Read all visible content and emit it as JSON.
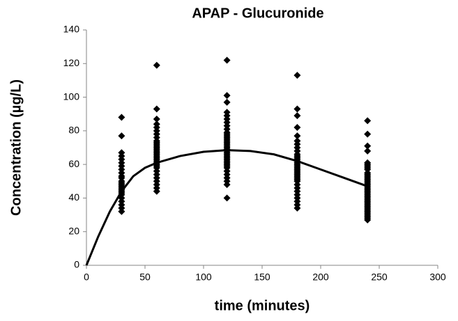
{
  "chart_data": {
    "type": "scatter",
    "title": "APAP - Glucuronide",
    "x_label": "time (minutes)",
    "y_label": "Concentration (µg/L)",
    "xlim": [
      0,
      300
    ],
    "xticks": [
      0,
      50,
      100,
      150,
      200,
      250,
      300
    ],
    "ylim": [
      0,
      140
    ],
    "yticks": [
      0,
      20,
      40,
      60,
      80,
      100,
      120,
      140
    ],
    "grid": false,
    "series": [
      {
        "color": "#000000",
        "marker": "diamond",
        "x": [
          30,
          30,
          30,
          30,
          30,
          30,
          30,
          30,
          30,
          30,
          30,
          30,
          30,
          30,
          30,
          30,
          30,
          30,
          30,
          30,
          30,
          30,
          30,
          30,
          30,
          60,
          60,
          60,
          60,
          60,
          60,
          60,
          60,
          60,
          60,
          60,
          60,
          60,
          60,
          60,
          60,
          60,
          60,
          60,
          60,
          60,
          60,
          60,
          60,
          60,
          60,
          60,
          60,
          60,
          60,
          60,
          60,
          120,
          120,
          120,
          120,
          120,
          120,
          120,
          120,
          120,
          120,
          120,
          120,
          120,
          120,
          120,
          120,
          120,
          120,
          120,
          120,
          120,
          120,
          120,
          120,
          120,
          120,
          120,
          120,
          120,
          120,
          120,
          120,
          120,
          120,
          120,
          120,
          120,
          180,
          180,
          180,
          180,
          180,
          180,
          180,
          180,
          180,
          180,
          180,
          180,
          180,
          180,
          180,
          180,
          180,
          180,
          180,
          180,
          180,
          180,
          180,
          180,
          180,
          180,
          180,
          180,
          180,
          180,
          180,
          180,
          180,
          180,
          240,
          240,
          240,
          240,
          240,
          240,
          240,
          240,
          240,
          240,
          240,
          240,
          240,
          240,
          240,
          240,
          240,
          240,
          240,
          240,
          240,
          240,
          240,
          240,
          240,
          240,
          240,
          240,
          240,
          240,
          240,
          240,
          240,
          240,
          240,
          240,
          240,
          240
        ],
        "values": [
          88,
          77,
          67,
          65,
          63,
          61,
          59,
          57,
          55,
          53,
          52,
          50,
          49,
          48,
          47,
          46,
          45,
          44,
          43,
          42,
          40,
          38,
          36,
          34,
          32,
          119,
          93,
          87,
          84,
          82,
          80,
          78,
          76,
          74,
          73,
          72,
          71,
          70,
          69,
          68,
          67,
          66,
          65,
          64,
          63,
          62,
          61,
          60,
          59,
          58,
          56,
          54,
          52,
          50,
          48,
          46,
          44,
          122,
          101,
          97,
          91,
          89,
          87,
          85,
          83,
          81,
          79,
          78,
          77,
          76,
          75,
          74,
          73,
          72,
          71,
          70,
          69,
          68,
          67,
          66,
          65,
          64,
          63,
          62,
          61,
          60,
          59,
          58,
          56,
          54,
          52,
          50,
          48,
          40,
          113,
          93,
          89,
          82,
          77,
          74,
          72,
          70,
          68,
          66,
          65,
          64,
          63,
          62,
          61,
          60,
          59,
          58,
          57,
          56,
          55,
          54,
          53,
          52,
          51,
          50,
          48,
          46,
          44,
          42,
          40,
          38,
          36,
          34,
          86,
          78,
          71,
          68,
          61,
          60,
          59,
          58,
          57,
          55,
          54,
          53,
          52,
          51,
          50,
          49,
          48,
          47,
          46,
          45,
          44,
          43,
          42,
          41,
          40,
          39,
          38,
          37,
          36,
          35,
          34,
          33,
          32,
          31,
          30,
          29,
          28,
          27
        ]
      },
      {
        "color": "#000000",
        "style": "line",
        "x": [
          0,
          10,
          20,
          30,
          40,
          50,
          60,
          80,
          100,
          120,
          140,
          160,
          180,
          200,
          220,
          240
        ],
        "values": [
          0,
          17,
          32,
          44,
          53,
          58,
          61,
          65,
          67.5,
          68.5,
          68,
          66,
          62,
          57,
          52,
          47
        ]
      }
    ]
  }
}
